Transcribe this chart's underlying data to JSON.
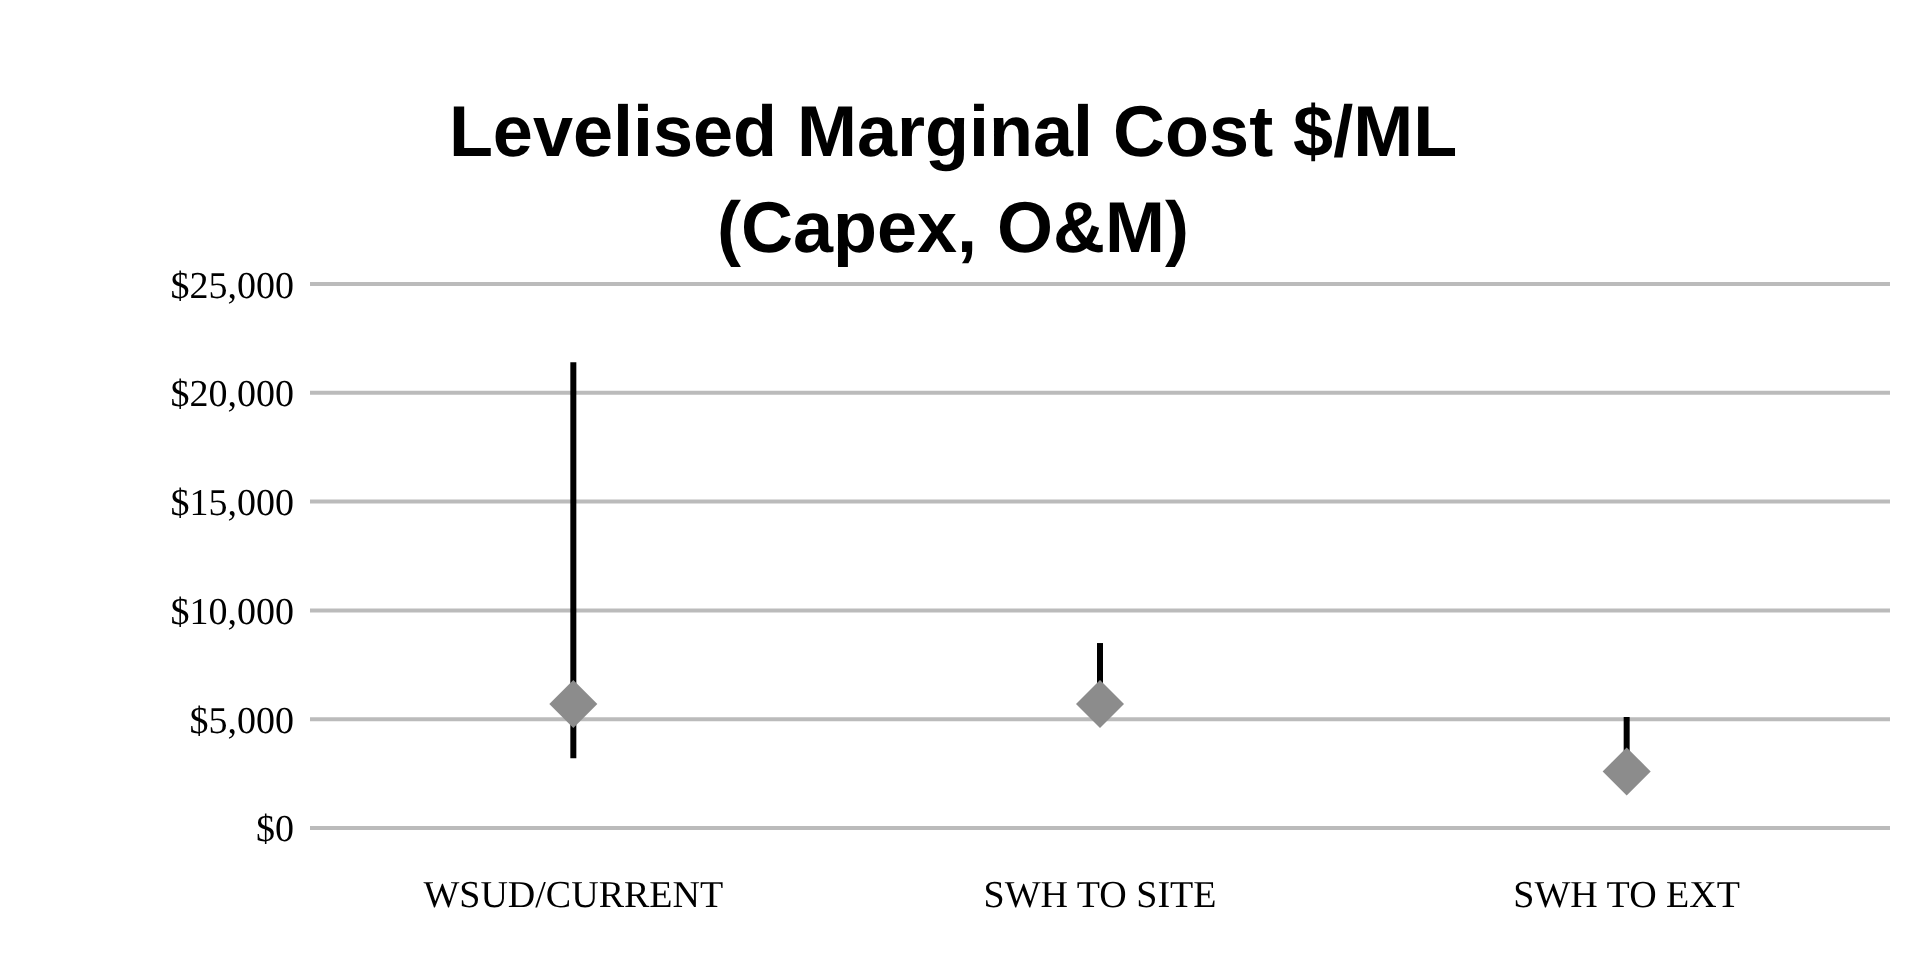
{
  "chart_data": {
    "type": "scatter",
    "title": "Levelised Marginal Cost $/ML\n(Capex, O&M)",
    "categories": [
      "WSUD/CURRENT",
      "SWH TO SITE",
      "SWH TO EXT"
    ],
    "values": [
      5700,
      5700,
      2600
    ],
    "errors": [
      [
        3200,
        21400
      ],
      [
        5700,
        8500
      ],
      [
        2600,
        5100
      ]
    ],
    "color": "#8c8c8c",
    "marker": "diamond",
    "ylim": [
      0,
      25000
    ],
    "yticks": [
      {
        "value": 0,
        "label": "$0"
      },
      {
        "value": 5000,
        "label": "$5,000"
      },
      {
        "value": 10000,
        "label": "$10,000"
      },
      {
        "value": 15000,
        "label": "$15,000"
      },
      {
        "value": 20000,
        "label": "$20,000"
      },
      {
        "value": 25000,
        "label": "$25,000"
      }
    ],
    "grid": "y"
  }
}
